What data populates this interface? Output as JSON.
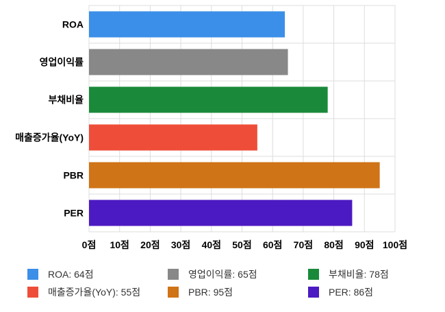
{
  "chart_data": {
    "type": "bar",
    "orientation": "horizontal",
    "categories": [
      "ROA",
      "영업이익률",
      "부채비율",
      "매출증가율(YoY)",
      "PBR",
      "PER"
    ],
    "values": [
      64,
      65,
      78,
      55,
      95,
      86
    ],
    "colors": [
      "#3b8fe8",
      "#888888",
      "#1a8a3a",
      "#ee4e39",
      "#cf7417",
      "#4c1ac2"
    ],
    "x_ticks": [
      "0점",
      "10점",
      "20점",
      "30점",
      "40점",
      "50점",
      "60점",
      "70점",
      "80점",
      "90점",
      "100점"
    ],
    "xlim": [
      0,
      100
    ],
    "grid": true,
    "legend_position": "bottom",
    "legend": [
      "ROA: 64점",
      "영업이익률: 65점",
      "부채비율: 78점",
      "매출증가율(YoY): 55점",
      "PBR: 95점",
      "PER: 86점"
    ]
  }
}
